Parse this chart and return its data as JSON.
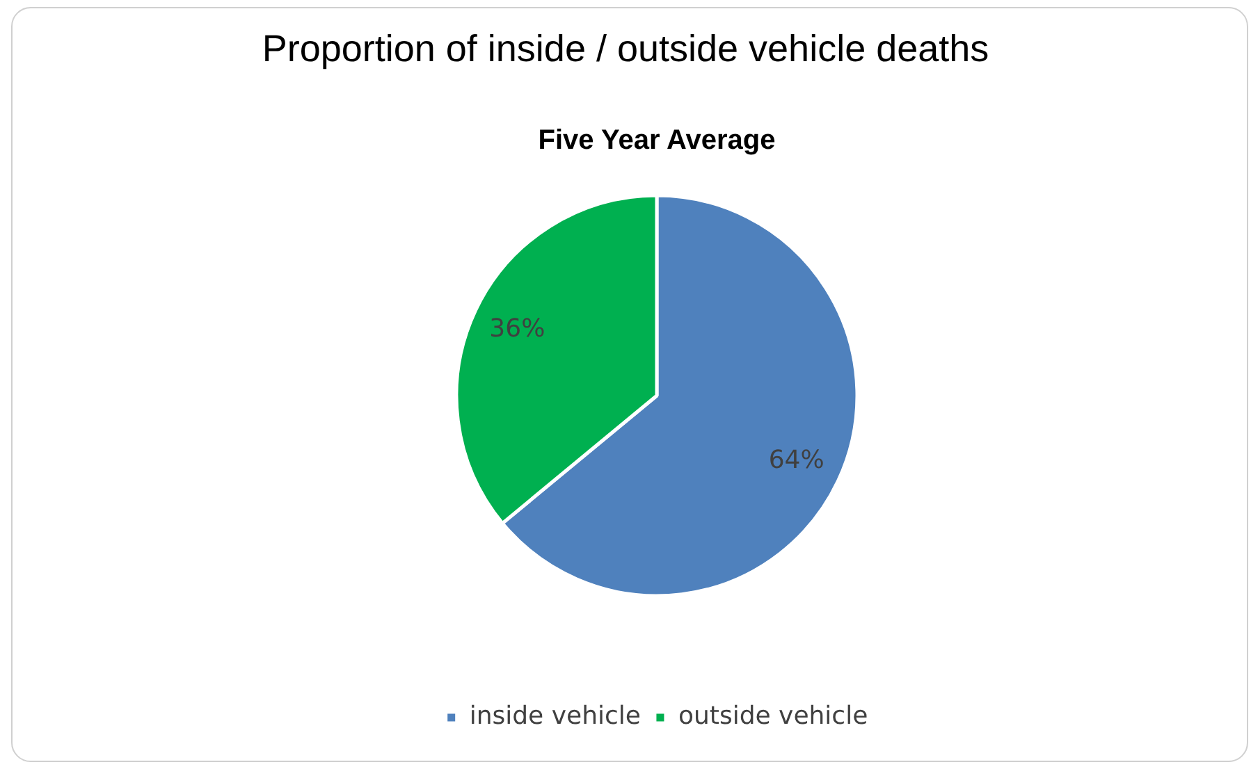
{
  "chart_data": {
    "type": "pie",
    "title": "Proportion of inside / outside vehicle deaths",
    "subtitle": "Five Year Average",
    "categories": [
      "inside vehicle",
      "outside vehicle"
    ],
    "values": [
      64,
      36
    ],
    "colors": [
      "#4f81bd",
      "#00b050"
    ],
    "value_labels": [
      "64%",
      "36%"
    ],
    "legend": "bottom"
  }
}
